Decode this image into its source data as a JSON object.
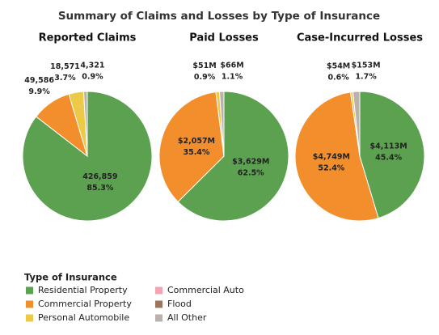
{
  "title": "Summary of Claims and Losses by Type of Insurance",
  "chart_data": [
    {
      "type": "pie",
      "title": "Reported Claims",
      "categories": [
        "Residential Property",
        "Commercial Property",
        "Personal Automobile",
        "All Other"
      ],
      "values": [
        85.3,
        9.9,
        3.7,
        0.9
      ],
      "value_labels": [
        "85.3%",
        "9.9%",
        "3.7%",
        "0.9%"
      ],
      "amounts": [
        426859,
        49586,
        18571,
        4321
      ],
      "amount_labels": [
        "426,859",
        "49,586",
        "18,571",
        "4,321"
      ]
    },
    {
      "type": "pie",
      "title": "Paid Losses",
      "categories": [
        "Residential Property",
        "Commercial Property",
        "Personal Automobile",
        "All Other"
      ],
      "values": [
        62.5,
        35.4,
        0.9,
        1.1
      ],
      "value_labels": [
        "62.5%",
        "35.4%",
        "0.9%",
        "1.1%"
      ],
      "amounts": [
        3629000000,
        2057000000,
        51000000,
        66000000
      ],
      "amount_labels": [
        "$3,629M",
        "$2,057M",
        "$51M",
        "$66M"
      ]
    },
    {
      "type": "pie",
      "title": "Case-Incurred Losses",
      "categories": [
        "Residential Property",
        "Commercial Property",
        "Personal Automobile",
        "All Other"
      ],
      "values": [
        45.4,
        52.4,
        0.6,
        1.7
      ],
      "value_labels": [
        "45.4%",
        "52.4%",
        "0.6%",
        "1.7%"
      ],
      "amounts": [
        4113000000,
        4749000000,
        54000000,
        153000000
      ],
      "amount_labels": [
        "$4,113M",
        "$4,749M",
        "$54M",
        "$153M"
      ]
    }
  ],
  "legend": {
    "title": "Type of Insurance",
    "position": "bottom-left",
    "items": [
      {
        "name": "Residential Property",
        "color": "#5ba14f"
      },
      {
        "name": "Commercial Property",
        "color": "#f28e2b"
      },
      {
        "name": "Personal Automobile",
        "color": "#edc948"
      },
      {
        "name": "Commercial Auto",
        "color": "#f4a3b4"
      },
      {
        "name": "Flood",
        "color": "#9c755f"
      },
      {
        "name": "All Other",
        "color": "#bab0ac"
      }
    ]
  }
}
